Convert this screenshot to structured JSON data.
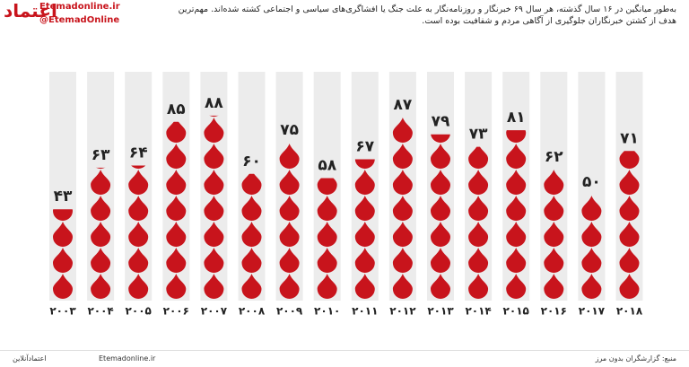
{
  "logo": "اعتماد",
  "site": "Etemadonline.ir",
  "handle": "@EtemadOnline",
  "footer": {
    "brand": "اعتمادآنلاین",
    "url": "Etemadonline.ir"
  },
  "chart_data": {
    "type": "pictogram",
    "subtitle": "به‌طور میانگین در ۱۶ سال گذشته، هر سال ۶۹ خبرنگار و روزنامه‌نگار به علت جنگ یا افشاگری‌های سیاسی و اجتماعی کشته شده‌اند. مهم‌ترین هدف از کشتن خبرنگاران جلوگیری از آگاهی مردم و شفافیت بوده است.",
    "source": "منبع: گزارشگران بدون مرز",
    "categories": [
      "۲۰۰۳",
      "۲۰۰۴",
      "۲۰۰۵",
      "۲۰۰۶",
      "۲۰۰۷",
      "۲۰۰۸",
      "۲۰۰۹",
      "۲۰۱۰",
      "۲۰۱۱",
      "۲۰۱۲",
      "۲۰۱۳",
      "۲۰۱۴",
      "۲۰۱۵",
      "۲۰۱۶",
      "۲۰۱۷",
      "۲۰۱۸"
    ],
    "values": [
      43,
      63,
      64,
      85,
      88,
      60,
      75,
      58,
      67,
      87,
      79,
      73,
      81,
      62,
      50,
      71
    ],
    "value_labels": [
      "۴۳",
      "۶۳",
      "۶۴",
      "۸۵",
      "۸۸",
      "۶۰",
      "۷۵",
      "۵۸",
      "۶۷",
      "۸۷",
      "۷۹",
      "۷۳",
      "۸۱",
      "۶۲",
      "۵۰",
      "۷۱"
    ],
    "color": "#c8141c",
    "ylim": [
      0,
      100
    ]
  }
}
